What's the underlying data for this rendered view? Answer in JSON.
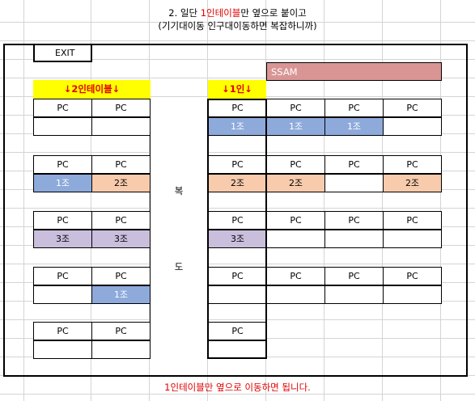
{
  "title_line1_prefix": "2. 일단 ",
  "title_line1_red": "1인테이블",
  "title_line1_suffix": "만 옆으로 붙이고",
  "title_line2": "(기기대이동 인구대이동하면 복잡하니까)",
  "exit_label": "EXIT",
  "ssam_label": "SSAM",
  "header_2p": "↓2인테이블↓",
  "header_1p": "↓1인↓",
  "pc_label": "PC",
  "corridor_top": "복",
  "corridor_bottom": "도",
  "footer": "1인테이블만 옆으로 이동하면 됩니다.",
  "colors": {
    "group1": "#8eaadb",
    "group2": "#f8cbad",
    "group3": "#c9bedc",
    "ssam": "#d99594",
    "header": "#ffff00"
  },
  "groups": {
    "g1": "1조",
    "g2": "2조",
    "g3": "3조"
  }
}
